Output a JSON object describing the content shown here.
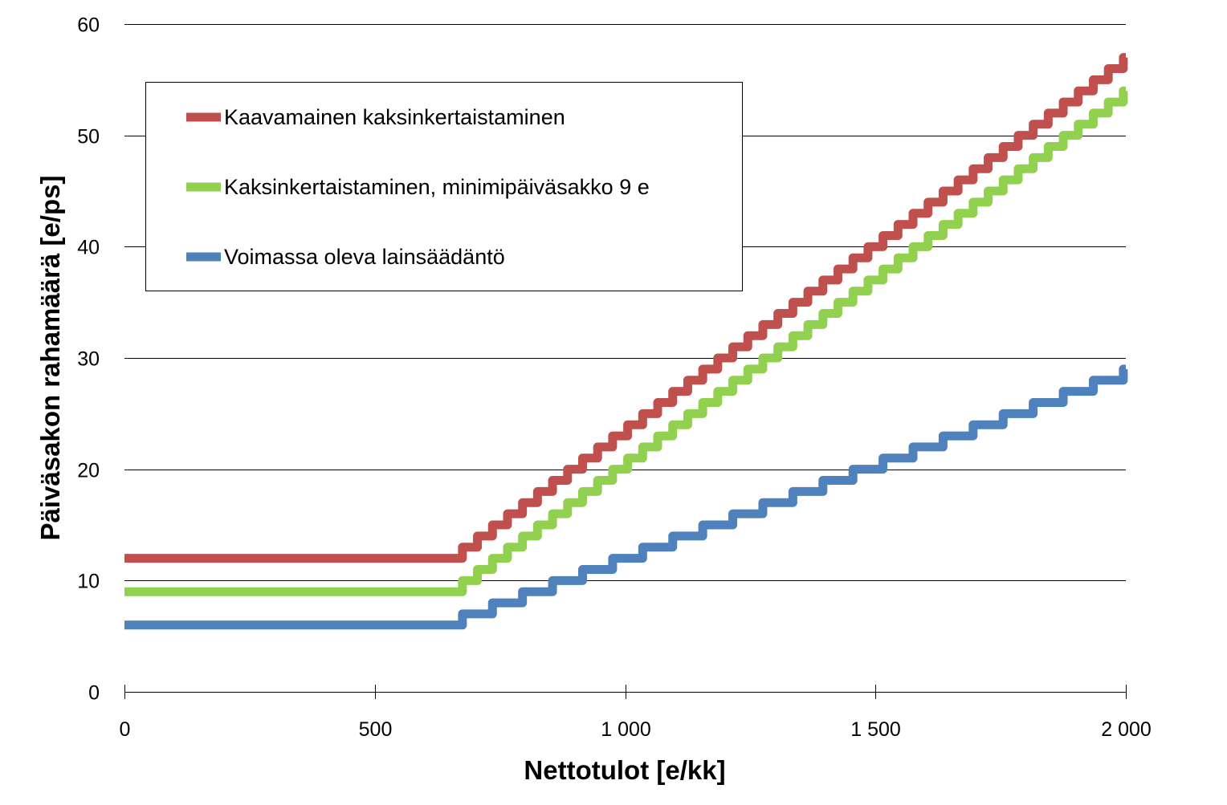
{
  "chart_data": {
    "type": "line",
    "title": "",
    "xlabel": "Nettotulot [e/kk]",
    "ylabel": "Päiväsakon rahamäärä [e/ps]",
    "xlim": [
      0,
      2000
    ],
    "ylim": [
      0,
      60
    ],
    "x_ticks": [
      0,
      500,
      1000,
      1500,
      2000
    ],
    "x_tick_labels": [
      "0",
      "500",
      "1 000",
      "1 500",
      "2 000"
    ],
    "y_ticks": [
      0,
      10,
      20,
      30,
      40,
      50,
      60
    ],
    "y_tick_labels": [
      "0",
      "10",
      "20",
      "30",
      "40",
      "50",
      "60"
    ],
    "grid": "horizontal",
    "legend_position": "top-left",
    "line_style": "step",
    "series": [
      {
        "name": "Kaavamainen kaksinkertaistaminen",
        "color": "#c0504d",
        "x": [
          0,
          675,
          705,
          735,
          765,
          795,
          825,
          855,
          885,
          915,
          945,
          975,
          1005,
          1035,
          1065,
          1095,
          1125,
          1155,
          1185,
          1215,
          1245,
          1275,
          1305,
          1335,
          1365,
          1395,
          1425,
          1455,
          1485,
          1515,
          1545,
          1575,
          1605,
          1635,
          1665,
          1695,
          1725,
          1755,
          1785,
          1815,
          1845,
          1875,
          1905,
          1935,
          1965,
          1995,
          2000
        ],
        "y": [
          12,
          13,
          14,
          15,
          16,
          17,
          18,
          19,
          20,
          21,
          22,
          23,
          24,
          25,
          26,
          27,
          28,
          29,
          30,
          31,
          32,
          33,
          34,
          35,
          36,
          37,
          38,
          39,
          40,
          41,
          42,
          43,
          44,
          45,
          46,
          47,
          48,
          49,
          50,
          51,
          52,
          53,
          54,
          55,
          56,
          57,
          57
        ]
      },
      {
        "name": "Kaksinkertaistaminen, minimipäiväsakko 9 e",
        "color": "#92d050",
        "x": [
          0,
          675,
          705,
          735,
          765,
          795,
          825,
          855,
          885,
          915,
          945,
          975,
          1005,
          1035,
          1065,
          1095,
          1125,
          1155,
          1185,
          1215,
          1245,
          1275,
          1305,
          1335,
          1365,
          1395,
          1425,
          1455,
          1485,
          1515,
          1545,
          1575,
          1605,
          1635,
          1665,
          1695,
          1725,
          1755,
          1785,
          1815,
          1845,
          1875,
          1905,
          1935,
          1965,
          1995,
          2000
        ],
        "y": [
          9,
          10,
          11,
          12,
          13,
          14,
          15,
          16,
          17,
          18,
          19,
          20,
          21,
          22,
          23,
          24,
          25,
          26,
          27,
          28,
          29,
          30,
          31,
          32,
          33,
          34,
          35,
          36,
          37,
          38,
          39,
          40,
          41,
          42,
          43,
          44,
          45,
          46,
          47,
          48,
          49,
          50,
          51,
          52,
          53,
          54,
          54
        ]
      },
      {
        "name": "Voimassa oleva lainsäädäntö",
        "color": "#4f81bd",
        "x": [
          0,
          675,
          735,
          795,
          855,
          915,
          975,
          1035,
          1095,
          1155,
          1215,
          1275,
          1335,
          1395,
          1455,
          1515,
          1575,
          1635,
          1695,
          1755,
          1815,
          1875,
          1935,
          1995,
          2000
        ],
        "y": [
          6,
          7,
          8,
          9,
          10,
          11,
          12,
          13,
          14,
          15,
          16,
          17,
          18,
          19,
          20,
          21,
          22,
          23,
          24,
          25,
          26,
          27,
          28,
          29,
          29
        ]
      }
    ]
  }
}
